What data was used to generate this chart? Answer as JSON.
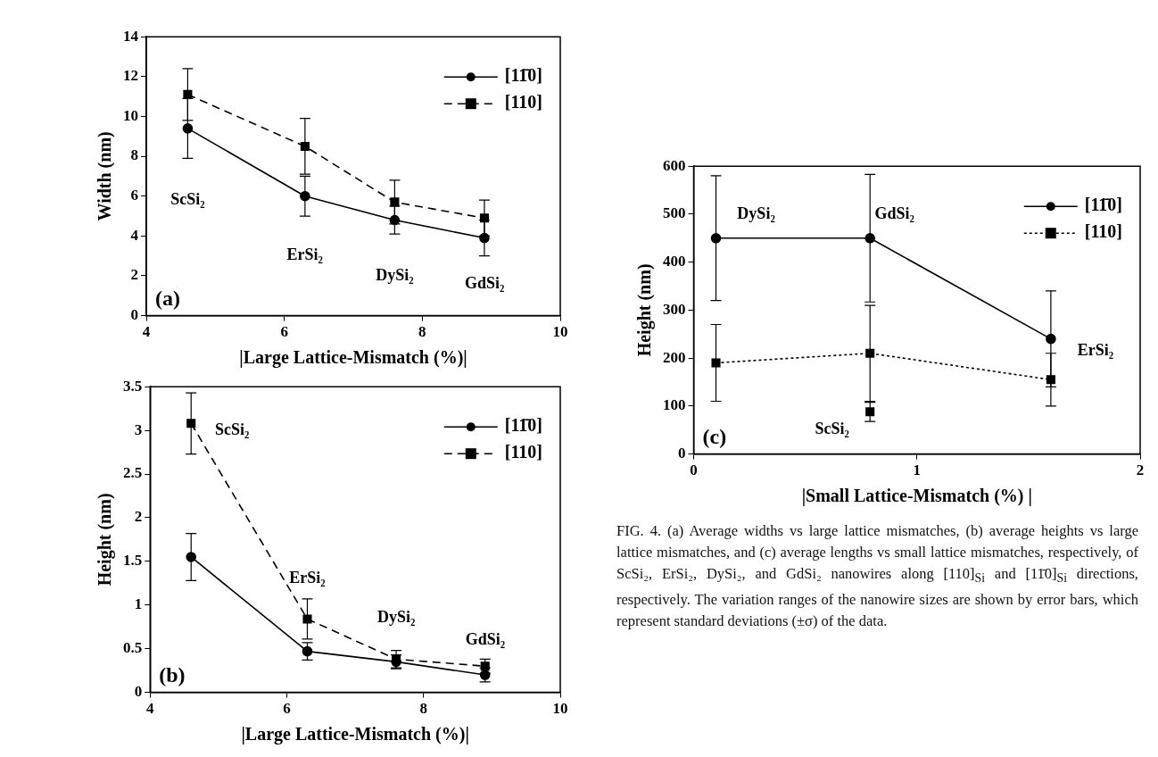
{
  "chart_data": [
    {
      "type": "line",
      "xlabel": "|Large Lattice-Mismatch (%)|",
      "ylabel": "Width (nm)",
      "x": [
        4.6,
        6.3,
        7.6,
        8.9
      ],
      "xlim": [
        4,
        10
      ],
      "xticks": [
        4,
        6,
        8,
        10
      ],
      "ylim": [
        0,
        14
      ],
      "yticks": [
        0,
        2,
        4,
        6,
        8,
        10,
        12,
        14
      ],
      "legend": "top right",
      "series": [
        {
          "name": "[11̄0]",
          "type": "line",
          "color": "#000000",
          "marker": "circle",
          "line_style": "solid",
          "values": [
            9.4,
            6.0,
            4.8,
            3.9
          ],
          "errors": [
            1.5,
            1.0,
            0.7,
            0.9
          ]
        },
        {
          "name": "[110]",
          "type": "line",
          "color": "#000000",
          "marker": "square",
          "line_style": "dashed",
          "values": [
            11.1,
            8.5,
            5.7,
            4.9
          ],
          "errors": [
            1.3,
            1.4,
            1.1,
            0.9
          ]
        }
      ],
      "annotations": [
        "(a)",
        "ScSi₂",
        "ErSi₂",
        "DySi₂",
        "GdSi₂"
      ]
    },
    {
      "type": "line",
      "xlabel": "|Large Lattice-Mismatch (%)|",
      "ylabel": "Height (nm)",
      "x": [
        4.6,
        6.3,
        7.6,
        8.9
      ],
      "xlim": [
        4,
        10
      ],
      "xticks": [
        4,
        6,
        8,
        10
      ],
      "ylim": [
        0,
        3.5
      ],
      "yticks": [
        0,
        0.5,
        1,
        1.5,
        2,
        2.5,
        3,
        3.5
      ],
      "legend": "top right",
      "series": [
        {
          "name": "[11̄0]",
          "type": "line",
          "color": "#000000",
          "marker": "circle",
          "line_style": "solid",
          "values": [
            1.55,
            0.47,
            0.35,
            0.2
          ],
          "errors": [
            0.27,
            0.1,
            0.08,
            0.08
          ]
        },
        {
          "name": "[110]",
          "type": "line",
          "color": "#000000",
          "marker": "square",
          "line_style": "dashed",
          "values": [
            3.08,
            0.84,
            0.38,
            0.3
          ],
          "errors": [
            0.35,
            0.23,
            0.1,
            0.08
          ]
        }
      ],
      "annotations": [
        "(b)",
        "ScSi₂",
        "ErSi₂",
        "DySi₂",
        "GdSi₂"
      ]
    },
    {
      "type": "line",
      "xlabel": "|Small Lattice-Mismatch (%) |",
      "ylabel": "Height (nm)",
      "x": [
        0.1,
        0.79,
        1.6
      ],
      "xlim": [
        0,
        2
      ],
      "xticks": [
        0,
        1,
        2
      ],
      "ylim": [
        0,
        600
      ],
      "yticks": [
        0,
        100,
        200,
        300,
        400,
        500,
        600
      ],
      "legend": "top right",
      "series": [
        {
          "name": "[11̄0]",
          "type": "line",
          "color": "#000000",
          "marker": "circle",
          "line_style": "solid",
          "values": [
            450,
            450,
            240
          ],
          "errors": [
            130,
            133,
            100
          ]
        },
        {
          "name": "[110]",
          "type": "line",
          "color": "#000000",
          "marker": "square",
          "line_style": "dotted",
          "values": [
            190,
            210,
            155
          ],
          "errors": [
            80,
            100,
            55
          ]
        },
        {
          "type": "scatter",
          "x": [
            0.79
          ],
          "color": "#000000",
          "marker": "square",
          "values": [
            88
          ],
          "errors": [
            20
          ]
        }
      ],
      "annotations": [
        "(c)",
        "DySi₂",
        "GdSi₂",
        "ErSi₂",
        "ScSi₂"
      ]
    },
    {
      "type": "other",
      "annotations": [
        "FIG. 4. (a) Average widths vs large lattice mismatches, (b) average heights vs large lattice mismatches, and (c) average lengths vs small lattice mismatches, respectively, of ScSi₂, ErSi₂, DySi₂, and GdSi₂ nanowires along [110]$_{Si}$ and [11̄0]$_{Si}$ directions, respectively. The variation ranges of the nanowire sizes are shown by error bars, which represent standard deviations (±σ) of the data."
      ]
    }
  ]
}
